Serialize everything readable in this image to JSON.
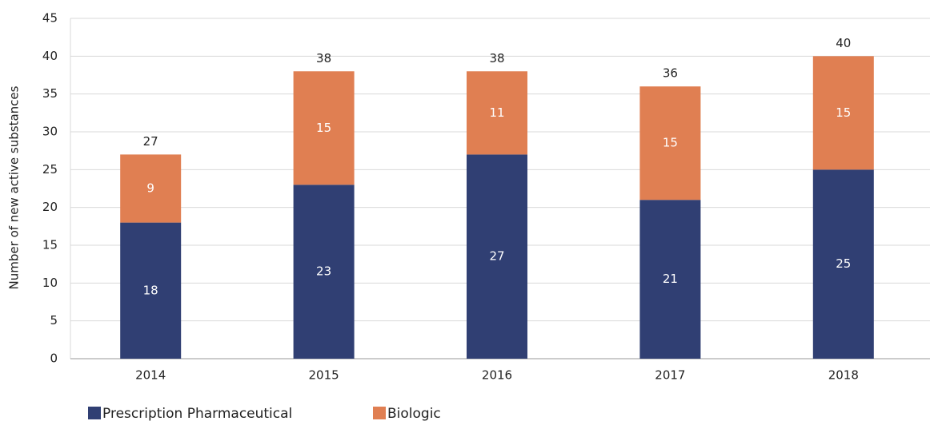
{
  "chart_data": {
    "type": "stacked_bar",
    "y_label": "Number of new active substances",
    "categories": [
      "2014",
      "2015",
      "2016",
      "2017",
      "2018"
    ],
    "series": [
      {
        "name": "Prescription Pharmaceutical",
        "color": "#303f73",
        "values": [
          18,
          23,
          27,
          21,
          25
        ]
      },
      {
        "name": "Biologic",
        "color": "#e07f52",
        "values": [
          9,
          15,
          11,
          15,
          15
        ]
      }
    ],
    "totals": [
      27,
      38,
      38,
      36,
      40
    ],
    "ylim": [
      0,
      45
    ],
    "yticks": [
      0,
      5,
      10,
      15,
      20,
      25,
      30,
      35,
      40,
      45
    ],
    "grid": true
  }
}
